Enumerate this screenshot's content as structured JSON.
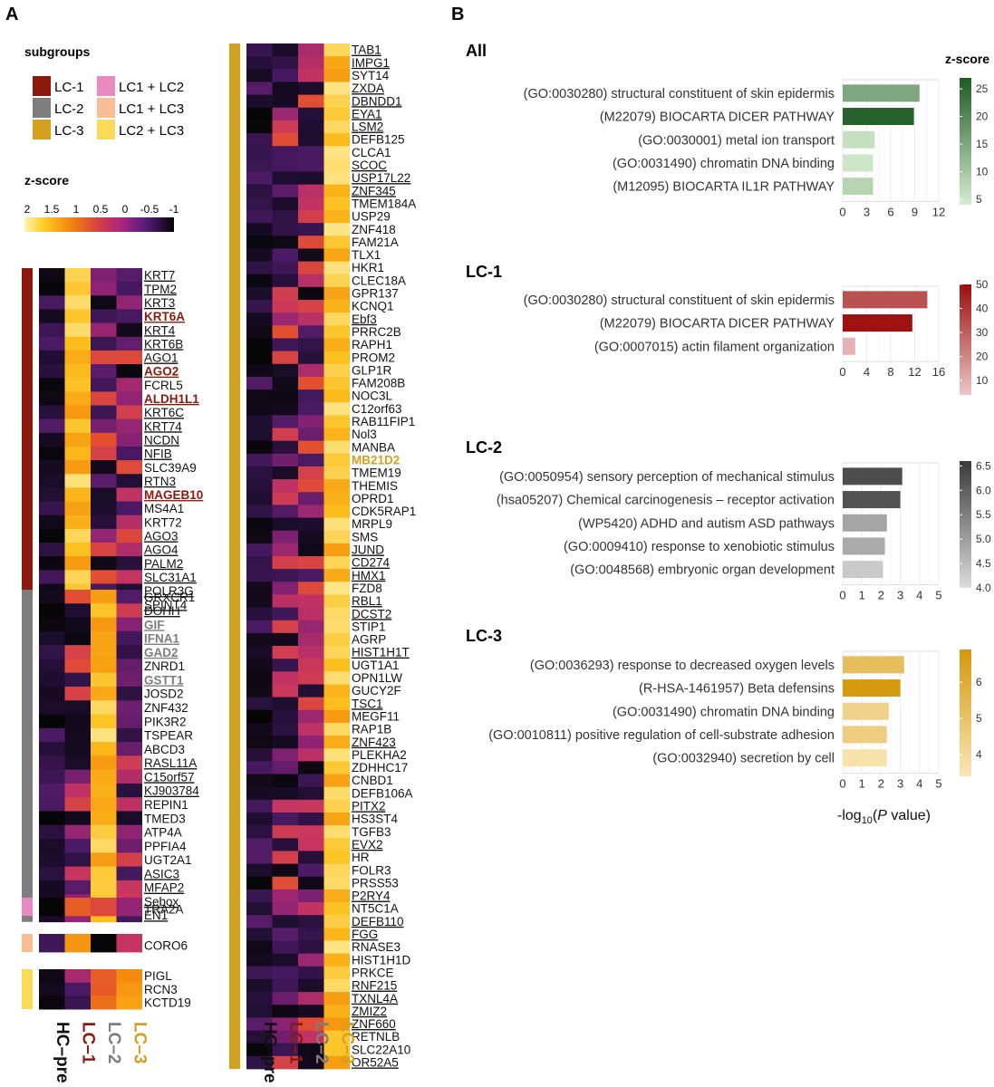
{
  "panel_labels": {
    "a": "A",
    "b": "B"
  },
  "legend": {
    "subgroups_title": "subgroups",
    "zscore_title": "z-score",
    "zscore_ticks": [
      "2",
      "1.5",
      "1",
      "0.5",
      "0",
      "-0.5",
      "-1"
    ],
    "items": [
      {
        "label": "LC-1",
        "color": "#8b1a0e"
      },
      {
        "label": "LC-2",
        "color": "#7d7d7d"
      },
      {
        "label": "LC-3",
        "color": "#d4a020"
      },
      {
        "label": "LC1 + LC2",
        "color": "#e88ac0"
      },
      {
        "label": "LC1 + LC3",
        "color": "#f8bd92"
      },
      {
        "label": "LC2 + LC3",
        "color": "#fadb55"
      }
    ]
  },
  "columns": [
    {
      "label": "HC–pre",
      "color": "#111111"
    },
    {
      "label": "LC–1",
      "color": "#8b1a0e"
    },
    {
      "label": "LC–2",
      "color": "#7d7d7d"
    },
    {
      "label": "LC–3",
      "color": "#d4a020"
    }
  ],
  "heatmap_groups": [
    {
      "group": "LC-1",
      "color": "#8b1a0e",
      "genes": [
        {
          "name": "KRT7",
          "u": true
        },
        {
          "name": "TPM2",
          "u": true
        },
        {
          "name": "KRT3",
          "u": true
        },
        {
          "name": "KRT6A",
          "u": true,
          "hl": "#8b1a0e"
        },
        {
          "name": "KRT4",
          "u": true
        },
        {
          "name": "KRT6B",
          "u": true
        },
        {
          "name": "AGO1",
          "u": true
        },
        {
          "name": "AGO2",
          "u": true,
          "hl": "#8b1a0e"
        },
        {
          "name": "FCRL5",
          "u": false
        },
        {
          "name": "ALDH1L1",
          "u": true,
          "hl": "#8b1a0e"
        },
        {
          "name": "KRT6C",
          "u": true
        },
        {
          "name": "KRT74",
          "u": true
        },
        {
          "name": "NCDN",
          "u": true
        },
        {
          "name": "NFIB",
          "u": true
        },
        {
          "name": "SLC39A9",
          "u": false
        },
        {
          "name": "RTN3",
          "u": true
        },
        {
          "name": "MAGEB10",
          "u": true,
          "hl": "#8b1a0e"
        },
        {
          "name": "MS4A1",
          "u": false
        },
        {
          "name": "KRT72",
          "u": false
        },
        {
          "name": "AGO3",
          "u": true
        },
        {
          "name": "AGO4",
          "u": true
        },
        {
          "name": "PALM2",
          "u": true
        },
        {
          "name": "SLC31A1",
          "u": true
        },
        {
          "name": "POLR3G",
          "u": true
        },
        {
          "name": "SPINT4",
          "u": true
        }
      ]
    },
    {
      "group": "LC-2",
      "color": "#7d7d7d",
      "genes": [
        {
          "name": "GRXCR1",
          "u": false
        },
        {
          "name": "DOHH",
          "u": true
        },
        {
          "name": "GIF",
          "u": true,
          "hl": "#7d7d7d"
        },
        {
          "name": "IFNA1",
          "u": true,
          "hl": "#7d7d7d"
        },
        {
          "name": "GAD2",
          "u": true,
          "hl": "#7d7d7d"
        },
        {
          "name": "ZNRD1",
          "u": false
        },
        {
          "name": "GSTT1",
          "u": true,
          "hl": "#7d7d7d"
        },
        {
          "name": "JOSD2",
          "u": false
        },
        {
          "name": "ZNF432",
          "u": false
        },
        {
          "name": "PIK3R2",
          "u": false
        },
        {
          "name": "TSPEAR",
          "u": false
        },
        {
          "name": "ABCD3",
          "u": false
        },
        {
          "name": "RASL11A",
          "u": true
        },
        {
          "name": "C15orf57",
          "u": true
        },
        {
          "name": "KJ903784",
          "u": true
        },
        {
          "name": "REPIN1",
          "u": false
        },
        {
          "name": "TMED3",
          "u": false
        },
        {
          "name": "ATP4A",
          "u": false
        },
        {
          "name": "PPFIA4",
          "u": false
        },
        {
          "name": "UGT2A1",
          "u": false
        },
        {
          "name": "ASIC3",
          "u": true
        },
        {
          "name": "MFAP2",
          "u": true
        },
        {
          "name": "Sebox",
          "u": true
        },
        {
          "name": "EN1",
          "u": true
        }
      ]
    },
    {
      "group": "LC1 + LC2",
      "color": "#e88ac0",
      "genes": [
        {
          "name": "TRA2A",
          "u": false
        }
      ]
    },
    {
      "group": "LC1 + LC3",
      "color": "#f8bd92",
      "genes": [
        {
          "name": "CORO6",
          "u": false
        }
      ]
    },
    {
      "group": "LC2 + LC3",
      "color": "#fadb55",
      "genes": [
        {
          "name": "PIGL",
          "u": false
        },
        {
          "name": "RCN3",
          "u": false
        },
        {
          "name": "KCTD19",
          "u": false
        }
      ]
    },
    {
      "group": "LC-3",
      "color": "#d4a020",
      "genes": [
        {
          "name": "TAB1",
          "u": true
        },
        {
          "name": "IMPG1",
          "u": true
        },
        {
          "name": "SYT14",
          "u": false
        },
        {
          "name": "ZXDA",
          "u": true
        },
        {
          "name": "DBNDD1",
          "u": true
        },
        {
          "name": "EYA1",
          "u": true
        },
        {
          "name": "LSM2",
          "u": true
        },
        {
          "name": "DEFB125",
          "u": false
        },
        {
          "name": "CLCA1",
          "u": false
        },
        {
          "name": "SCOC",
          "u": true
        },
        {
          "name": "USP17L22",
          "u": true
        },
        {
          "name": "ZNF345",
          "u": true
        },
        {
          "name": "TMEM184A",
          "u": false
        },
        {
          "name": "USP29",
          "u": false
        },
        {
          "name": "ZNF418",
          "u": false
        },
        {
          "name": "FAM21A",
          "u": false
        },
        {
          "name": "TLX1",
          "u": false
        },
        {
          "name": "HKR1",
          "u": false
        },
        {
          "name": "CLEC18A",
          "u": false
        },
        {
          "name": "GPR137",
          "u": false
        },
        {
          "name": "KCNQ1",
          "u": false
        },
        {
          "name": "Ebf3",
          "u": true
        },
        {
          "name": "PRRC2B",
          "u": false
        },
        {
          "name": "RAPH1",
          "u": false
        },
        {
          "name": "PROM2",
          "u": false
        },
        {
          "name": "GLP1R",
          "u": false
        },
        {
          "name": "FAM208B",
          "u": false
        },
        {
          "name": "NOC3L",
          "u": false
        },
        {
          "name": "C12orf63",
          "u": false
        },
        {
          "name": "RAB11FIP1",
          "u": false
        },
        {
          "name": "Nol3",
          "u": false
        },
        {
          "name": "MANBA",
          "u": false
        },
        {
          "name": "MB21D2",
          "u": false,
          "hl": "#d4a020"
        },
        {
          "name": "TMEM19",
          "u": false
        },
        {
          "name": "THEMIS",
          "u": false
        },
        {
          "name": "OPRD1",
          "u": false
        },
        {
          "name": "CDK5RAP1",
          "u": false
        },
        {
          "name": "MRPL9",
          "u": false
        },
        {
          "name": "SMS",
          "u": false
        },
        {
          "name": "JUND",
          "u": true
        },
        {
          "name": "CD274",
          "u": true
        },
        {
          "name": "HMX1",
          "u": true
        },
        {
          "name": "FZD8",
          "u": false
        },
        {
          "name": "RBL1",
          "u": true
        },
        {
          "name": "DCST2",
          "u": true
        },
        {
          "name": "STIP1",
          "u": false
        },
        {
          "name": "AGRP",
          "u": false
        },
        {
          "name": "HIST1H1T",
          "u": true
        },
        {
          "name": "UGT1A1",
          "u": false
        },
        {
          "name": "OPN1LW",
          "u": false
        },
        {
          "name": "GUCY2F",
          "u": false
        },
        {
          "name": "TSC1",
          "u": true
        },
        {
          "name": "MEGF11",
          "u": false
        },
        {
          "name": "RAP1B",
          "u": false
        },
        {
          "name": "ZNF423",
          "u": true
        },
        {
          "name": "PLEKHA2",
          "u": false
        },
        {
          "name": "ZDHHC17",
          "u": false
        },
        {
          "name": "CNBD1",
          "u": false
        },
        {
          "name": "DEFB106A",
          "u": false
        },
        {
          "name": "PITX2",
          "u": true
        },
        {
          "name": "HS3ST4",
          "u": false
        },
        {
          "name": "TGFB3",
          "u": false
        },
        {
          "name": "EVX2",
          "u": true
        },
        {
          "name": "HR",
          "u": false
        },
        {
          "name": "FOLR3",
          "u": false
        },
        {
          "name": "PRSS53",
          "u": false
        },
        {
          "name": "P2RY4",
          "u": true
        },
        {
          "name": "NT5C1A",
          "u": false
        },
        {
          "name": "DEFB110",
          "u": true
        },
        {
          "name": "FGG",
          "u": true
        },
        {
          "name": "RNASE3",
          "u": false
        },
        {
          "name": "HIST1H1D",
          "u": false
        },
        {
          "name": "PRKCE",
          "u": false
        },
        {
          "name": "RNF215",
          "u": true
        },
        {
          "name": "TXNL4A",
          "u": true
        },
        {
          "name": "ZMIZ2",
          "u": true
        },
        {
          "name": "ZNF660",
          "u": true
        },
        {
          "name": "RETNLB",
          "u": false
        },
        {
          "name": "SLC22A10",
          "u": false
        },
        {
          "name": "OR52A5",
          "u": true
        }
      ]
    }
  ],
  "chart_data": [
    {
      "type": "bar",
      "title": "All",
      "xlabel": "-log10(P value)",
      "xlim": [
        0,
        12
      ],
      "xticks": [
        0,
        3,
        6,
        9,
        12
      ],
      "categories": [
        "(GO:0030280) structural constituent of skin epidermis",
        "(M22079) BIOCARTA DICER PATHWAY",
        "(GO:0030001) metal ion transport",
        "(GO:0031490) chromatin DNA binding",
        "(M12095) BIOCARTA IL1R PATHWAY"
      ],
      "values": [
        9.6,
        8.9,
        4.0,
        3.8,
        3.8
      ],
      "zscore": [
        15,
        26,
        6,
        5,
        8
      ],
      "colorbar": {
        "title": "z-score",
        "range": [
          4,
          27
        ],
        "ticks": [
          5,
          10,
          15,
          20,
          25
        ],
        "low": "#d6ecd0",
        "high": "#1e5b23"
      }
    },
    {
      "type": "bar",
      "title": "LC-1",
      "xlabel": "-log10(P value)",
      "xlim": [
        0,
        16
      ],
      "xticks": [
        0,
        4,
        8,
        12,
        16
      ],
      "categories": [
        "(GO:0030280) structural constituent of skin epidermis",
        "(M22079) BIOCARTA DICER PATHWAY",
        "(GO:0007015) actin filament organization"
      ],
      "values": [
        14.1,
        11.6,
        2.1
      ],
      "zscore": [
        33,
        49,
        9
      ],
      "colorbar": {
        "title": "",
        "range": [
          4,
          50
        ],
        "ticks": [
          10,
          20,
          30,
          40,
          50
        ],
        "low": "#ecc7c7",
        "high": "#9c0d0d"
      }
    },
    {
      "type": "bar",
      "title": "LC-2",
      "xlabel": "-log10(P value)",
      "xlim": [
        0,
        5
      ],
      "xticks": [
        0,
        1,
        2,
        3,
        4,
        5
      ],
      "categories": [
        "(GO:0050954) sensory perception of mechanical stimulus",
        "(hsa05207) Chemical carcinogenesis – receptor activation",
        "(WP5420) ADHD and autism ASD pathways",
        "(GO:0009410) response to xenobiotic stimulus",
        "(GO:0048568) embryonic organ development"
      ],
      "values": [
        3.1,
        3.0,
        2.3,
        2.2,
        2.1
      ],
      "zscore": [
        6.3,
        6.2,
        4.9,
        4.8,
        4.3
      ],
      "colorbar": {
        "title": "",
        "range": [
          4,
          6.6
        ],
        "ticks": [
          4.0,
          4.5,
          5.0,
          5.5,
          6.0,
          6.5
        ],
        "low": "#dcdcdc",
        "high": "#3a3a3a"
      }
    },
    {
      "type": "bar",
      "title": "LC-3",
      "xlabel": "-log10(P value)",
      "xlim": [
        0,
        5
      ],
      "xticks": [
        0,
        1,
        2,
        3,
        4,
        5
      ],
      "categories": [
        "(GO:0036293) response to decreased oxygen levels",
        "(R-HSA-1461957) Beta defensins",
        "(GO:0031490) chromatin DNA binding",
        "(GO:0010811) positive regulation of cell-substrate adhesion",
        "(GO:0032940) secretion by cell"
      ],
      "values": [
        3.2,
        3.0,
        2.4,
        2.3,
        2.3
      ],
      "zscore": [
        5.2,
        6.8,
        4.3,
        4.5,
        3.6
      ],
      "colorbar": {
        "title": "",
        "range": [
          3.4,
          6.9
        ],
        "ticks": [
          4,
          5,
          6
        ],
        "low": "#f9e6b5",
        "high": "#d5980c"
      }
    }
  ]
}
